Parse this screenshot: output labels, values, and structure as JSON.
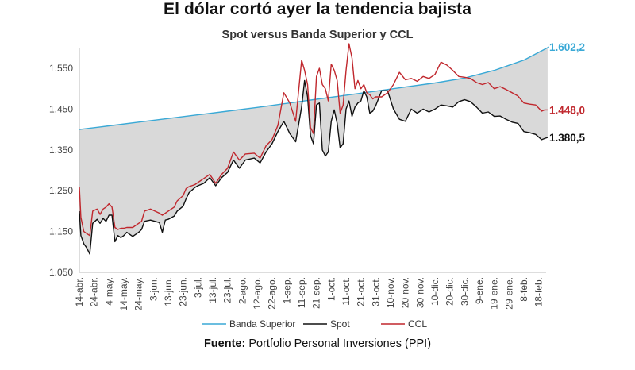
{
  "chart_data": {
    "type": "line",
    "title": "El dólar cortó ayer la tendencia bajista",
    "subtitle": "Spot versus Banda Superior y CCL",
    "source_label": "Fuente:",
    "source_text": "Portfolio Personal Inversiones (PPI)",
    "ylim": [
      1050,
      1620
    ],
    "yticks": [
      1050,
      1150,
      1250,
      1350,
      1450,
      1550
    ],
    "ytick_labels": [
      "1.050",
      "1.150",
      "1.250",
      "1.350",
      "1.450",
      "1.550"
    ],
    "xlim": [
      0,
      315
    ],
    "xticks": [
      {
        "day": 0,
        "label": "14-abr."
      },
      {
        "day": 10,
        "label": "24-abr."
      },
      {
        "day": 20,
        "label": "4-may."
      },
      {
        "day": 30,
        "label": "14-may."
      },
      {
        "day": 40,
        "label": "24-may."
      },
      {
        "day": 50,
        "label": "3-jun."
      },
      {
        "day": 60,
        "label": "13-jun."
      },
      {
        "day": 70,
        "label": "23-jun."
      },
      {
        "day": 80,
        "label": "3-jul."
      },
      {
        "day": 90,
        "label": "13-jul."
      },
      {
        "day": 100,
        "label": "23-jul."
      },
      {
        "day": 110,
        "label": "2-ago."
      },
      {
        "day": 120,
        "label": "12-ago."
      },
      {
        "day": 130,
        "label": "22-ago."
      },
      {
        "day": 140,
        "label": "1-sep."
      },
      {
        "day": 150,
        "label": "11-sep."
      },
      {
        "day": 160,
        "label": "21-sep."
      },
      {
        "day": 170,
        "label": "1-oct."
      },
      {
        "day": 180,
        "label": "11-oct."
      },
      {
        "day": 190,
        "label": "21-oct."
      },
      {
        "day": 200,
        "label": "31-oct."
      },
      {
        "day": 210,
        "label": "10-nov."
      },
      {
        "day": 220,
        "label": "20-nov."
      },
      {
        "day": 230,
        "label": "30-nov."
      },
      {
        "day": 240,
        "label": "10-dic."
      },
      {
        "day": 250,
        "label": "20-dic."
      },
      {
        "day": 260,
        "label": "30-dic."
      },
      {
        "day": 270,
        "label": "9-ene."
      },
      {
        "day": 280,
        "label": "19-ene."
      },
      {
        "day": 290,
        "label": "29-ene."
      },
      {
        "day": 300,
        "label": "8-feb."
      },
      {
        "day": 310,
        "label": "18-feb."
      }
    ],
    "grid": false,
    "legend_position": "bottom",
    "series": [
      {
        "name": "Banda Superior",
        "color": "#3aa9d6",
        "end_label": "1.602,2",
        "x": [
          0,
          20,
          40,
          60,
          80,
          100,
          120,
          140,
          160,
          180,
          200,
          220,
          240,
          260,
          280,
          300,
          317
        ],
        "values": [
          1400,
          1409,
          1418,
          1427,
          1436,
          1445,
          1454,
          1464,
          1474,
          1484,
          1494,
          1504,
          1514,
          1526,
          1545,
          1570,
          1602.2
        ]
      },
      {
        "name": "Spot",
        "color": "#111111",
        "end_label": "1.380,5",
        "x": [
          0,
          1,
          3,
          5,
          7,
          9,
          12,
          14,
          16,
          18,
          20,
          22,
          24,
          26,
          28,
          30,
          32,
          36,
          40,
          42,
          44,
          48,
          54,
          56,
          58,
          60,
          64,
          66,
          70,
          72,
          74,
          78,
          80,
          84,
          88,
          92,
          96,
          100,
          104,
          106,
          108,
          112,
          118,
          122,
          126,
          130,
          134,
          138,
          142,
          146,
          150,
          152,
          154,
          156,
          158,
          160,
          162,
          164,
          166,
          168,
          170,
          172,
          174,
          176,
          178,
          180,
          182,
          184,
          186,
          188,
          190,
          192,
          194,
          196,
          198,
          200,
          204,
          208,
          212,
          216,
          220,
          224,
          228,
          232,
          236,
          240,
          244,
          248,
          252,
          256,
          260,
          264,
          268,
          272,
          276,
          280,
          284,
          288,
          292,
          296,
          300,
          304,
          308,
          312,
          314,
          316
        ],
        "values": [
          1200,
          1140,
          1120,
          1110,
          1095,
          1170,
          1180,
          1170,
          1182,
          1175,
          1190,
          1190,
          1125,
          1140,
          1135,
          1140,
          1148,
          1138,
          1148,
          1155,
          1175,
          1178,
          1172,
          1148,
          1178,
          1180,
          1188,
          1200,
          1212,
          1230,
          1245,
          1258,
          1262,
          1268,
          1282,
          1262,
          1282,
          1295,
          1325,
          1315,
          1305,
          1325,
          1330,
          1318,
          1345,
          1365,
          1395,
          1420,
          1390,
          1370,
          1455,
          1520,
          1480,
          1385,
          1365,
          1460,
          1465,
          1350,
          1335,
          1345,
          1420,
          1448,
          1415,
          1355,
          1365,
          1450,
          1470,
          1432,
          1455,
          1465,
          1470,
          1495,
          1480,
          1440,
          1445,
          1458,
          1495,
          1495,
          1450,
          1425,
          1420,
          1450,
          1440,
          1450,
          1443,
          1450,
          1460,
          1458,
          1455,
          1468,
          1473,
          1468,
          1455,
          1440,
          1443,
          1432,
          1433,
          1425,
          1418,
          1415,
          1395,
          1392,
          1388,
          1375,
          1378,
          1380.5
        ]
      },
      {
        "name": "CCL",
        "color": "#c0272d",
        "end_label": "1.448,0",
        "x": [
          0,
          1,
          3,
          5,
          7,
          9,
          12,
          14,
          16,
          18,
          20,
          22,
          24,
          26,
          28,
          30,
          32,
          36,
          40,
          42,
          44,
          48,
          54,
          56,
          58,
          60,
          64,
          66,
          70,
          72,
          74,
          78,
          80,
          84,
          88,
          92,
          96,
          100,
          104,
          106,
          108,
          112,
          118,
          122,
          126,
          130,
          134,
          138,
          142,
          146,
          150,
          152,
          154,
          156,
          158,
          160,
          162,
          164,
          166,
          168,
          170,
          172,
          174,
          176,
          178,
          180,
          182,
          184,
          186,
          188,
          190,
          192,
          194,
          196,
          198,
          200,
          204,
          208,
          212,
          216,
          220,
          224,
          228,
          232,
          236,
          240,
          244,
          248,
          252,
          256,
          260,
          264,
          268,
          272,
          276,
          280,
          284,
          288,
          292,
          296,
          300,
          304,
          308,
          312,
          314,
          316
        ],
        "values": [
          1260,
          1185,
          1150,
          1145,
          1140,
          1200,
          1205,
          1192,
          1205,
          1210,
          1218,
          1210,
          1160,
          1155,
          1158,
          1158,
          1160,
          1160,
          1170,
          1175,
          1200,
          1205,
          1195,
          1190,
          1195,
          1200,
          1210,
          1225,
          1238,
          1255,
          1260,
          1265,
          1270,
          1280,
          1290,
          1268,
          1290,
          1305,
          1345,
          1335,
          1325,
          1340,
          1342,
          1330,
          1360,
          1375,
          1410,
          1490,
          1465,
          1420,
          1570,
          1545,
          1510,
          1405,
          1390,
          1530,
          1550,
          1510,
          1500,
          1470,
          1560,
          1545,
          1520,
          1440,
          1460,
          1545,
          1610,
          1575,
          1500,
          1520,
          1500,
          1510,
          1490,
          1485,
          1475,
          1480,
          1480,
          1490,
          1510,
          1540,
          1522,
          1525,
          1518,
          1530,
          1525,
          1535,
          1565,
          1558,
          1545,
          1530,
          1528,
          1525,
          1515,
          1510,
          1515,
          1500,
          1505,
          1498,
          1490,
          1482,
          1465,
          1462,
          1460,
          1445,
          1448,
          1448
        ]
      }
    ]
  }
}
